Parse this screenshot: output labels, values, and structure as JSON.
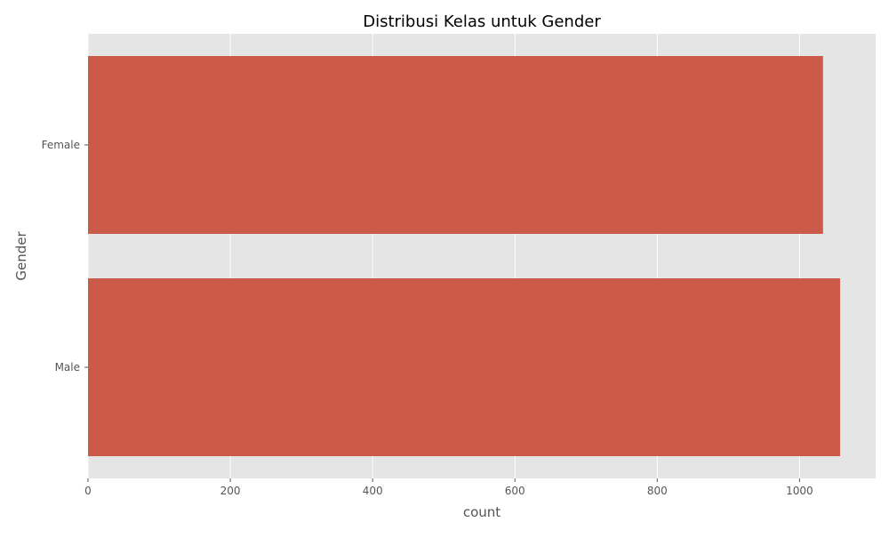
{
  "chart_data": {
    "type": "bar",
    "orientation": "horizontal",
    "title": "Distribusi Kelas untuk Gender",
    "xlabel": "count",
    "ylabel": "Gender",
    "categories": [
      "Female",
      "Male"
    ],
    "values": [
      1033,
      1057
    ],
    "xlim": [
      0,
      1107
    ],
    "xticks": [
      "0",
      "200",
      "400",
      "600",
      "800",
      "1000"
    ],
    "grid": true,
    "colors": {
      "bar": "#cc5a49",
      "plot_background": "#e5e5e5",
      "grid": "#ffffff"
    }
  }
}
